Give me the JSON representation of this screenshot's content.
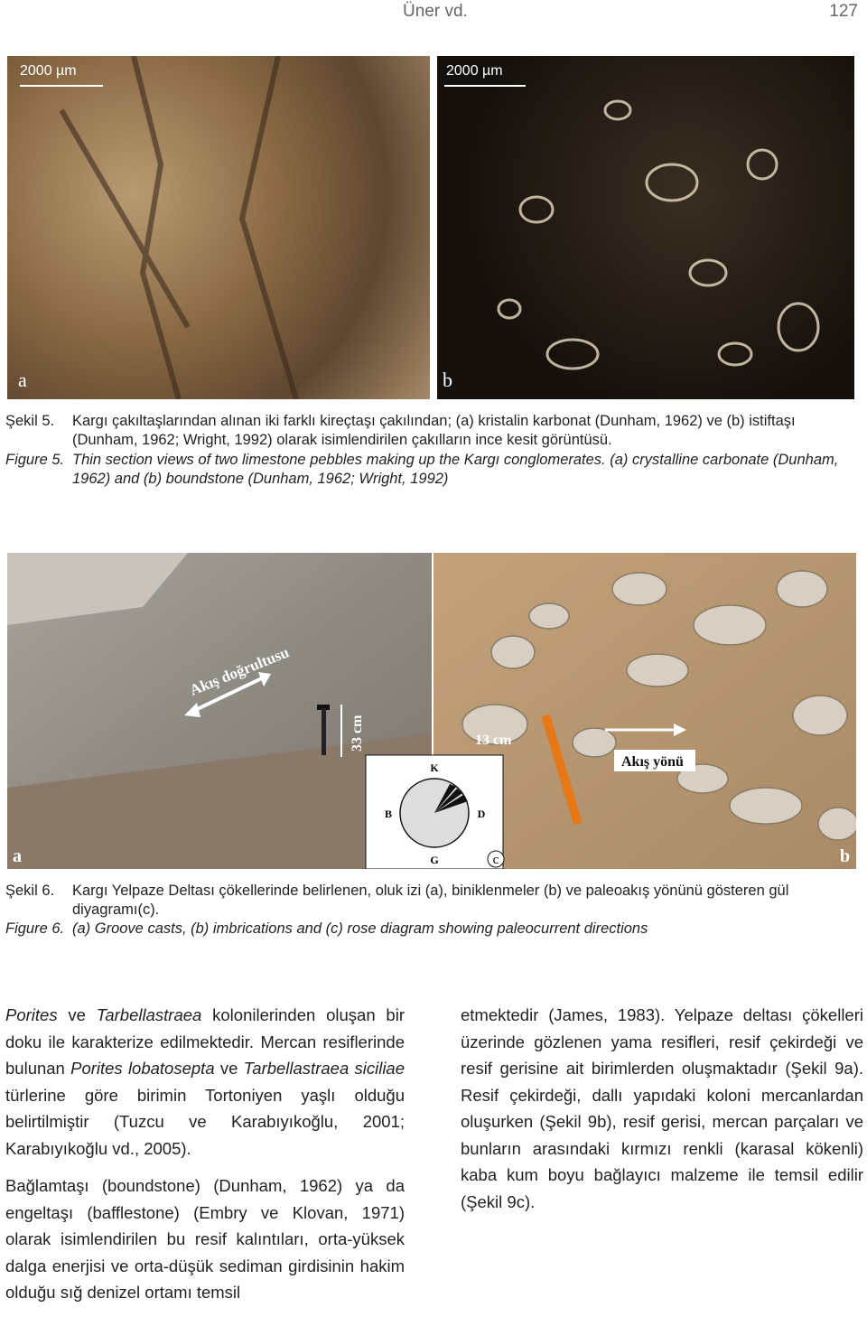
{
  "header": {
    "author": "Üner vd.",
    "page": "127"
  },
  "figure5": {
    "panel_a": {
      "scale": "2000 µm",
      "label": "a"
    },
    "panel_b": {
      "scale": "2000 µm",
      "label": "b"
    },
    "caption_tr": {
      "label": "Şekil 5.",
      "text": "Kargı çakıltaşlarından alınan iki farklı kireçtaşı çakılından; (a) kristalin karbonat (Dunham, 1962) ve (b) istiftaşı (Dunham, 1962; Wright, 1992) olarak isimlendirilen çakılların ince kesit görüntüsü."
    },
    "caption_en": {
      "label": "Figure 5.",
      "text": "Thin section views of two limestone pebbles making up the Kargı conglomerates. (a) crystalline carbonate (Dunham, 1962) and (b) boundstone (Dunham, 1962; Wright, 1992)"
    }
  },
  "figure6": {
    "panel_a": {
      "label": "a",
      "arrow": "Akış doğrultusu",
      "height": "33 cm"
    },
    "panel_b": {
      "label": "b",
      "length": "13 cm",
      "arrow": "Akış yönü"
    },
    "rose": {
      "label": "c",
      "north": "K",
      "west": "B",
      "east": "D",
      "south": "G"
    },
    "caption_tr": {
      "label": "Şekil 6.",
      "text": "Kargı Yelpaze Deltası çökellerinde belirlenen, oluk izi (a), biniklenmeler (b) ve paleoakış yönünü gösteren gül diyagramı(c)."
    },
    "caption_en": {
      "label": "Figure 6.",
      "text": "(a) Groove casts, (b) imbrications and (c) rose diagram showing paleocurrent directions"
    }
  },
  "body": {
    "left": [
      [
        {
          "text": "Porites",
          "style": "italic"
        },
        {
          "text": " ve "
        },
        {
          "text": "Tarbellastraea",
          "style": "italic"
        },
        {
          "text": " kolonilerinden oluşan bir doku ile karakterize edilmektedir. Mercan resiflerinde bulunan "
        },
        {
          "text": "Porites lobatosepta",
          "style": "italic"
        },
        {
          "text": " ve "
        },
        {
          "text": "Tarbellastraea siciliae",
          "style": "italic"
        },
        {
          "text": " türlerine göre birimin Tortoniyen yaşlı olduğu belirtilmiştir (Tuzcu ve Karabıyıkoğlu, 2001; Karabıyıkoğlu vd., 2005)."
        }
      ],
      [
        {
          "text": "Bağlamtaşı (boundstone) (Dunham, 1962) ya da engeltaşı (bafflestone) (Embry ve Klovan, 1971) olarak isimlendirilen bu resif kalıntıları, orta-yüksek dalga enerjisi ve orta-düşük sediman girdisinin hakim olduğu sığ denizel ortamı temsil"
        }
      ]
    ],
    "right": [
      [
        {
          "text": "etmektedir (James, 1983). Yelpaze deltası çökelleri üzerinde gözlenen yama resifleri, resif çekirdeği ve resif gerisine ait birimlerden oluşmaktadır (Şekil 9a). Resif çekirdeği, dallı yapıdaki koloni mercanlardan oluşurken (Şekil 9b), resif gerisi, mercan parçaları ve bunların arasındaki kırmızı renkli (karasal kökenli) kaba kum boyu bağlayıcı malzeme ile temsil edilir (Şekil 9c)."
        }
      ]
    ]
  }
}
